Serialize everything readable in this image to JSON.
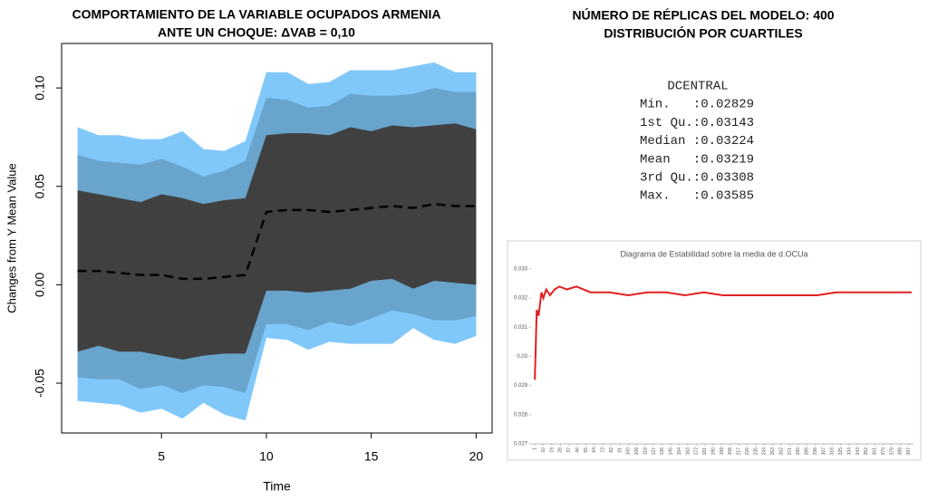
{
  "header": {
    "lines": [
      "NÚMERO DE RÉPLICAS DEL MODELO: 400",
      "DISTRIBUCIÓN POR CUARTILES"
    ]
  },
  "summary": {
    "title": "DCENTRAL",
    "rows": [
      "Min.   :0.02829",
      "1st Qu.:0.03143",
      "Median :0.03224",
      "Mean   :0.03219",
      "3rd Qu.:0.03308",
      "Max.   :0.03585"
    ]
  },
  "chart_data": [
    {
      "type": "fan",
      "title": [
        "COMPORTAMIENTO DE LA VARIABLE OCUPADOS ARMENIA",
        "ANTE UN CHOQUE: ΔVAB = 0,10"
      ],
      "x_label": "Time",
      "y_label": "Changes from Y Mean Value",
      "x": [
        1,
        2,
        3,
        4,
        5,
        6,
        7,
        8,
        9,
        10,
        11,
        12,
        13,
        14,
        15,
        16,
        17,
        18,
        19,
        20
      ],
      "xlim": [
        0.24,
        20.76
      ],
      "xticks": [
        5,
        10,
        15,
        20
      ],
      "ylim": [
        -0.0753,
        0.1226
      ],
      "yticks": [
        {
          "value": -0.05,
          "label": "-0.05"
        },
        {
          "value": 0,
          "label": "0.00"
        },
        0.05,
        {
          "value": 0.1,
          "label": "0.10"
        }
      ],
      "bands": [
        {
          "color": "#80c8fa",
          "upper": [
            0.08,
            0.076,
            0.076,
            0.074,
            0.074,
            0.078,
            0.069,
            0.068,
            0.073,
            0.108,
            0.108,
            0.102,
            0.103,
            0.109,
            0.109,
            0.109,
            0.111,
            0.113,
            0.108,
            0.108
          ],
          "lower": [
            -0.059,
            -0.06,
            -0.061,
            -0.065,
            -0.063,
            -0.068,
            -0.06,
            -0.066,
            -0.069,
            -0.027,
            -0.028,
            -0.033,
            -0.029,
            -0.03,
            -0.03,
            -0.03,
            -0.022,
            -0.028,
            -0.03,
            -0.026
          ]
        },
        {
          "color": "#68a4cc",
          "upper": [
            0.066,
            0.063,
            0.062,
            0.061,
            0.064,
            0.06,
            0.055,
            0.058,
            0.063,
            0.095,
            0.094,
            0.09,
            0.091,
            0.097,
            0.096,
            0.096,
            0.097,
            0.1,
            0.098,
            0.098
          ],
          "lower": [
            -0.047,
            -0.048,
            -0.048,
            -0.053,
            -0.051,
            -0.055,
            -0.051,
            -0.052,
            -0.055,
            -0.02,
            -0.02,
            -0.023,
            -0.019,
            -0.021,
            -0.017,
            -0.013,
            -0.015,
            -0.018,
            -0.018,
            -0.016
          ]
        },
        {
          "color": "#404040",
          "upper": [
            0.048,
            0.046,
            0.044,
            0.042,
            0.046,
            0.044,
            0.041,
            0.043,
            0.044,
            0.076,
            0.077,
            0.077,
            0.076,
            0.08,
            0.078,
            0.081,
            0.08,
            0.081,
            0.082,
            0.079
          ],
          "lower": [
            -0.034,
            -0.031,
            -0.034,
            -0.034,
            -0.036,
            -0.038,
            -0.036,
            -0.035,
            -0.035,
            -0.003,
            -0.003,
            -0.004,
            -0.003,
            -0.002,
            0.002,
            0.003,
            -0.002,
            0.002,
            0.001,
            0.0
          ]
        }
      ],
      "line": {
        "color": "#000000",
        "dashed": true,
        "values": [
          0.007,
          0.007,
          0.006,
          0.005,
          0.005,
          0.003,
          0.003,
          0.004,
          0.005,
          0.037,
          0.038,
          0.038,
          0.037,
          0.038,
          0.039,
          0.04,
          0.039,
          0.041,
          0.04,
          0.04
        ]
      }
    },
    {
      "type": "line",
      "title": "Diagrama de Estabilidad sobre la media de d.OCUa",
      "color": "#e02020",
      "x": [
        1,
        3,
        5,
        8,
        10,
        13,
        17,
        22,
        27,
        35,
        45,
        60,
        80,
        100,
        120,
        140,
        160,
        180,
        200,
        220,
        240,
        260,
        280,
        300,
        320,
        340,
        360,
        380,
        400
      ],
      "values": [
        0.0292,
        0.0316,
        0.0314,
        0.0322,
        0.032,
        0.0323,
        0.0321,
        0.0323,
        0.0324,
        0.0323,
        0.0324,
        0.0322,
        0.0322,
        0.0321,
        0.0322,
        0.0322,
        0.0321,
        0.0322,
        0.0321,
        0.0321,
        0.0321,
        0.0321,
        0.0321,
        0.0321,
        0.0322,
        0.0322,
        0.0322,
        0.0322,
        0.0322
      ],
      "xlim": [
        -3,
        402
      ],
      "xticks": [
        1,
        10,
        19,
        28,
        37,
        46,
        55,
        64,
        73,
        82,
        91,
        100,
        109,
        118,
        127,
        136,
        145,
        154,
        163,
        172,
        181,
        190,
        199,
        208,
        217,
        226,
        235,
        244,
        253,
        262,
        271,
        280,
        289,
        298,
        307,
        316,
        325,
        334,
        343,
        352,
        361,
        370,
        379,
        388,
        397
      ],
      "ylim": [
        0.027,
        0.033
      ],
      "yticks": [
        0.027,
        0.028,
        0.029,
        0.03,
        0.031,
        0.032,
        0.033
      ]
    }
  ]
}
